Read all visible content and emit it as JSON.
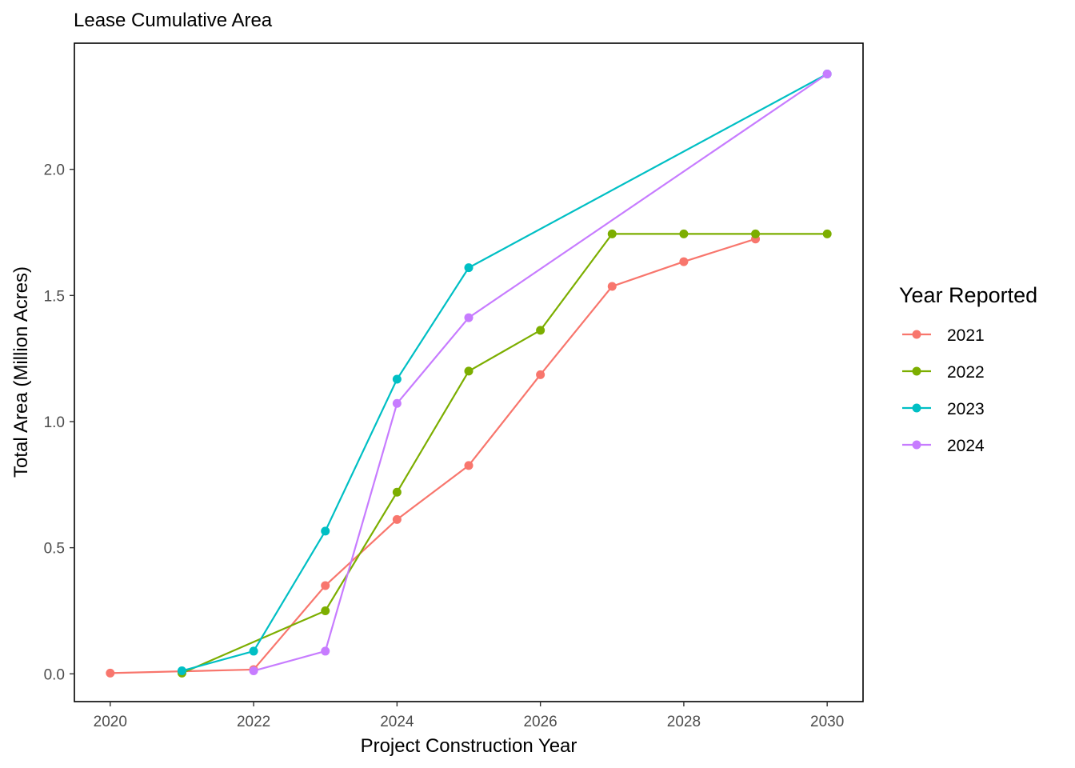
{
  "chart_data": {
    "type": "line",
    "title": "Lease Cumulative Area",
    "xlabel": "Project Construction Year",
    "ylabel": "Total Area (Million Acres)",
    "xlim": [
      2019.5,
      2030.5
    ],
    "ylim": [
      -0.11,
      2.5
    ],
    "x_ticks": [
      2020,
      2022,
      2024,
      2026,
      2028,
      2030
    ],
    "x_tick_labels": [
      "2020",
      "2022",
      "2024",
      "2026",
      "2028",
      "2030"
    ],
    "y_ticks": [
      0.0,
      0.5,
      1.0,
      1.5,
      2.0
    ],
    "y_tick_labels": [
      "0.0",
      "0.5",
      "1.0",
      "1.5",
      "2.0"
    ],
    "grid": false,
    "legend": {
      "title": "Year Reported",
      "placement": "right"
    },
    "series": [
      {
        "name": "2021",
        "color": "#F8766D",
        "x": [
          2020,
          2021,
          2022,
          2023,
          2024,
          2025,
          2026,
          2027,
          2028,
          2029
        ],
        "y": [
          0.003,
          0.01,
          0.017,
          0.35,
          0.612,
          0.826,
          1.186,
          1.536,
          1.634,
          1.724
        ]
      },
      {
        "name": "2022",
        "color": "#7CAE00",
        "x": [
          2021,
          2023,
          2024,
          2025,
          2026,
          2027,
          2028,
          2029,
          2030
        ],
        "y": [
          0.003,
          0.25,
          0.72,
          1.2,
          1.362,
          1.744,
          1.744,
          1.744,
          1.744
        ]
      },
      {
        "name": "2023",
        "color": "#00BFC4",
        "x": [
          2021,
          2022,
          2023,
          2024,
          2025,
          2030
        ],
        "y": [
          0.012,
          0.09,
          0.566,
          1.168,
          1.61,
          2.378
        ]
      },
      {
        "name": "2024",
        "color": "#C77CFF",
        "x": [
          2022,
          2023,
          2024,
          2025,
          2030
        ],
        "y": [
          0.012,
          0.09,
          1.072,
          1.412,
          2.378
        ]
      }
    ]
  }
}
